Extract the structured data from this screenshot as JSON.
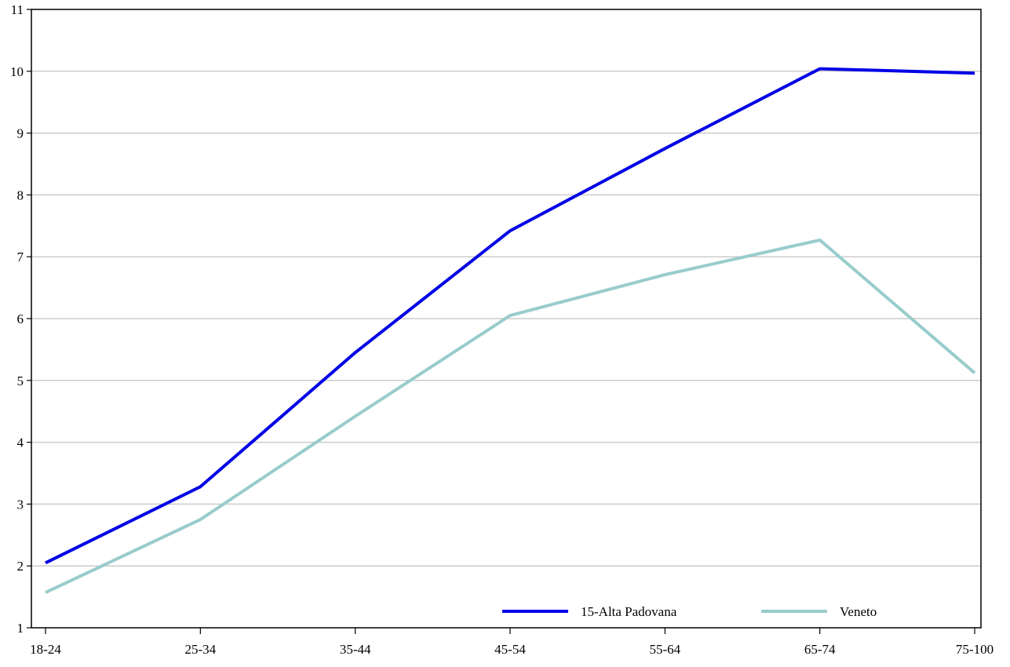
{
  "chart_data": {
    "type": "line",
    "title": "",
    "xlabel": "",
    "ylabel": "",
    "categories": [
      "18-24",
      "25-34",
      "35-44",
      "45-54",
      "55-64",
      "65-74",
      "75-100"
    ],
    "ylim": [
      1,
      11
    ],
    "yticks": [
      1,
      2,
      3,
      4,
      5,
      6,
      7,
      8,
      9,
      10,
      11
    ],
    "grid": true,
    "legend_position": "bottom-right",
    "series": [
      {
        "name": "15-Alta Padovana",
        "color": "#0000e6",
        "values": [
          2.05,
          3.28,
          5.45,
          7.42,
          8.75,
          10.04,
          9.97
        ]
      },
      {
        "name": "Veneto",
        "color": "#99cccc",
        "values": [
          1.57,
          2.75,
          4.42,
          6.05,
          6.71,
          7.27,
          5.12
        ]
      }
    ]
  }
}
